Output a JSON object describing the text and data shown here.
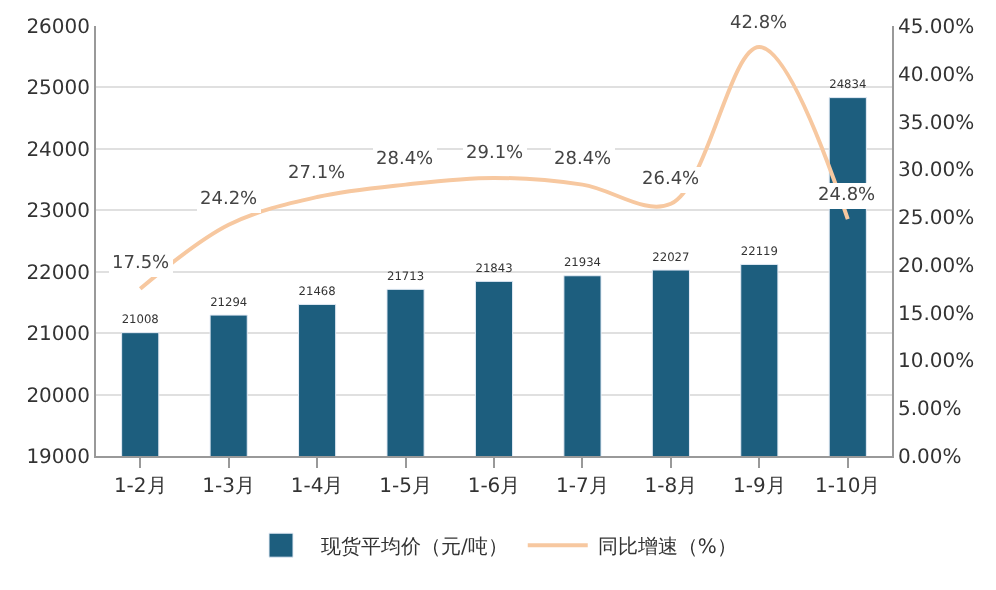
{
  "chart_data": {
    "type": "bar",
    "categories": [
      "1-2月",
      "1-3月",
      "1-4月",
      "1-5月",
      "1-6月",
      "1-7月",
      "1-8月",
      "1-9月",
      "1-10月"
    ],
    "series": [
      {
        "name": "现货平均价（元/吨）",
        "color": "#1d5e7e",
        "values": [
          21008,
          21294,
          21468,
          21713,
          21843,
          21934,
          22027,
          22119,
          24834
        ],
        "value_labels": [
          "21008",
          "21294",
          "21468",
          "21713",
          "21843",
          "21934",
          "22027",
          "22119",
          "24834"
        ]
      },
      {
        "name": "同比增速（%）",
        "type": "line",
        "axis": "y2",
        "color": "#f7c8a0",
        "values": [
          17.5,
          24.2,
          27.1,
          28.4,
          29.1,
          28.4,
          26.4,
          42.8,
          24.8
        ],
        "value_labels": [
          "17.5%",
          "24.2%",
          "27.1%",
          "28.4%",
          "29.1%",
          "28.4%",
          "26.4%",
          "42.8%",
          "24.8%"
        ]
      }
    ],
    "ylim": [
      19000,
      26000
    ],
    "yticks": [
      19000,
      20000,
      21000,
      22000,
      23000,
      24000,
      25000,
      26000
    ],
    "y2lim": [
      0,
      45
    ],
    "y2ticks": [
      {
        "value": 0,
        "label": "0.00%"
      },
      {
        "value": 5,
        "label": "5.00%"
      },
      {
        "value": 10,
        "label": "10.00%"
      },
      {
        "value": 15,
        "label": "15.00%"
      },
      {
        "value": 20,
        "label": "20.00%"
      },
      {
        "value": 25,
        "label": "25.00%"
      },
      {
        "value": 30,
        "label": "30.00%"
      },
      {
        "value": 35,
        "label": "35.00%"
      },
      {
        "value": 40,
        "label": "40.00%"
      },
      {
        "value": 45,
        "label": "45.00%"
      }
    ],
    "grid": "y",
    "legend": "bottom",
    "marker": "none",
    "line_style": "solid"
  }
}
